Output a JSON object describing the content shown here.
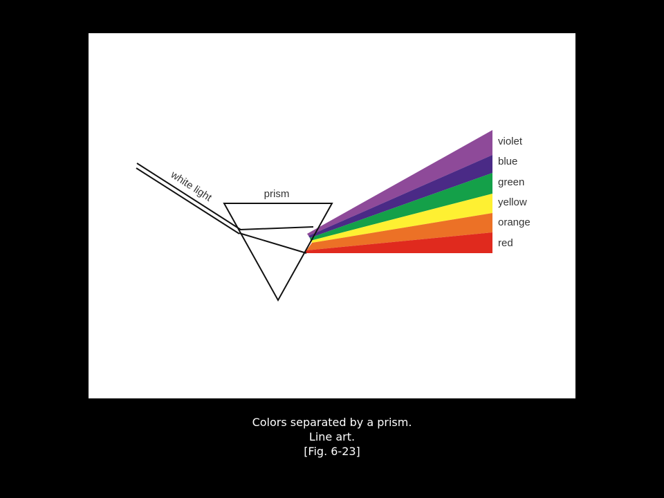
{
  "figure": {
    "labels": {
      "incoming_beam": "white light",
      "prism": "prism"
    },
    "spectrum": [
      {
        "label": "violet",
        "color": "#8e4a99"
      },
      {
        "label": "blue",
        "color": "#4a2a86"
      },
      {
        "label": "green",
        "color": "#14a049"
      },
      {
        "label": "yellow",
        "color": "#fef032"
      },
      {
        "label": "orange",
        "color": "#ec7126"
      },
      {
        "label": "red",
        "color": "#e02a1e"
      }
    ]
  },
  "caption": {
    "line1": "Colors separated by a prism.",
    "line2": "Line art.",
    "line3": "[Fig. 6-23]"
  }
}
